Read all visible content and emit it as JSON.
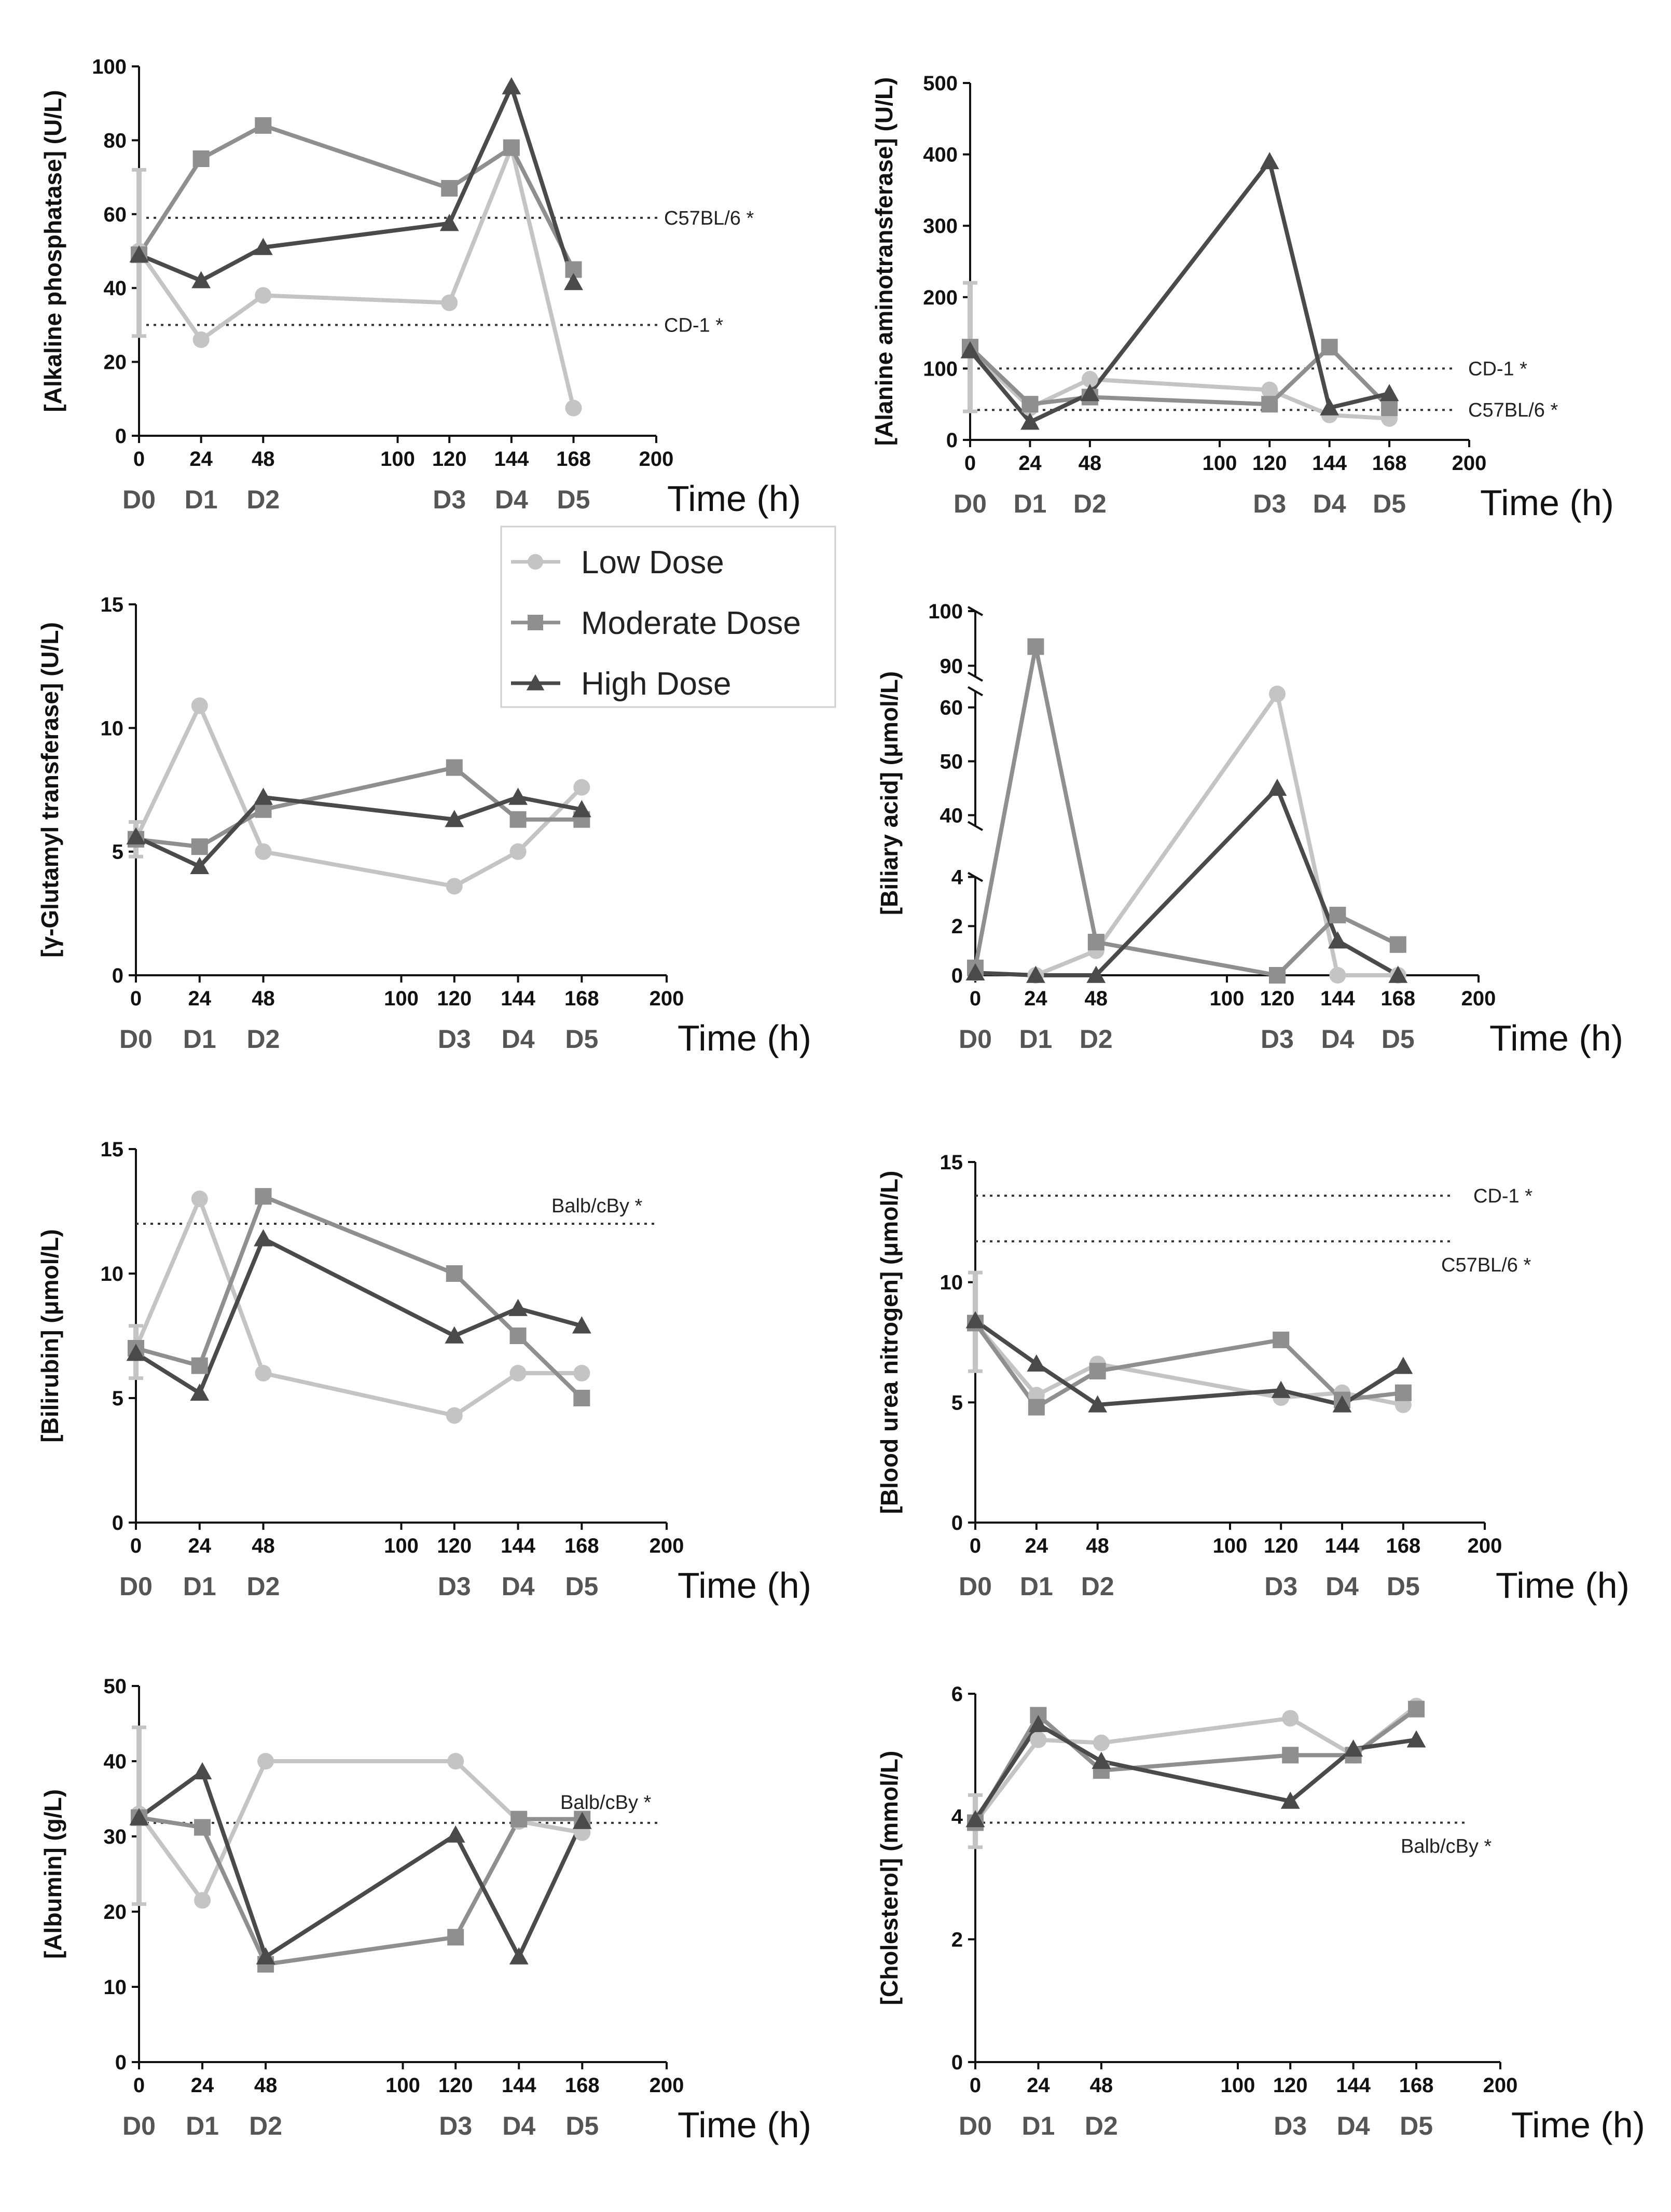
{
  "colors": {
    "low": "#c4c4c4",
    "moderate": "#8f8f8f",
    "high": "#4a4a4a",
    "axis": "#111111",
    "ref": "#333333"
  },
  "legend": {
    "items": [
      {
        "key": "low",
        "label": "Low Dose",
        "marker": "circle"
      },
      {
        "key": "moderate",
        "label": "Moderate Dose",
        "marker": "square"
      },
      {
        "key": "high",
        "label": "High Dose",
        "marker": "triangle"
      }
    ]
  },
  "chart_data": [
    {
      "type": "line",
      "title": "",
      "ylabel": "[Alkaline phosphatase] (U/L)",
      "xlabel": "Time (h)",
      "xlim": [
        0,
        200
      ],
      "xticks": [
        0,
        24,
        48,
        100,
        120,
        144,
        168,
        200
      ],
      "ylim": [
        0,
        100
      ],
      "yticks": [
        0,
        20,
        40,
        60,
        80,
        100
      ],
      "day_labels": [
        {
          "x": 0,
          "label": "D0"
        },
        {
          "x": 24,
          "label": "D1"
        },
        {
          "x": 48,
          "label": "D2"
        },
        {
          "x": 120,
          "label": "D3"
        },
        {
          "x": 144,
          "label": "D4"
        },
        {
          "x": 168,
          "label": "D5"
        }
      ],
      "x": [
        0,
        24,
        48,
        120,
        144,
        168
      ],
      "series": [
        {
          "name": "Low Dose",
          "key": "low",
          "values": [
            50,
            26,
            38,
            36,
            78,
            7.5
          ]
        },
        {
          "name": "Moderate Dose",
          "key": "moderate",
          "values": [
            49,
            75,
            84,
            67,
            78,
            45
          ]
        },
        {
          "name": "High Dose",
          "key": "high",
          "values": [
            49,
            42,
            51,
            57.5,
            94.5,
            41.5
          ]
        }
      ],
      "baseline_error": {
        "x": 0,
        "low": 27,
        "high": 72
      },
      "ref_lines": [
        {
          "y": 59,
          "label": "C57BL/6 *"
        },
        {
          "y": 30,
          "label": "CD-1 *"
        }
      ]
    },
    {
      "type": "line",
      "title": "",
      "ylabel": "[Alanine aminotransferase] (U/L)",
      "xlabel": "Time (h)",
      "xlim": [
        0,
        200
      ],
      "xticks": [
        0,
        24,
        48,
        100,
        120,
        144,
        168,
        200
      ],
      "ylim": [
        0,
        500
      ],
      "yticks": [
        0,
        100,
        200,
        300,
        400,
        500
      ],
      "day_labels": [
        {
          "x": 0,
          "label": "D0"
        },
        {
          "x": 24,
          "label": "D1"
        },
        {
          "x": 48,
          "label": "D2"
        },
        {
          "x": 120,
          "label": "D3"
        },
        {
          "x": 144,
          "label": "D4"
        },
        {
          "x": 168,
          "label": "D5"
        }
      ],
      "x": [
        0,
        24,
        48,
        120,
        144,
        168
      ],
      "series": [
        {
          "name": "Low Dose",
          "key": "low",
          "values": [
            125,
            45,
            85,
            70,
            35,
            30
          ]
        },
        {
          "name": "Moderate Dose",
          "key": "moderate",
          "values": [
            130,
            50,
            60,
            50,
            130,
            45
          ]
        },
        {
          "name": "High Dose",
          "key": "high",
          "values": [
            125,
            25,
            65,
            390,
            45,
            65
          ]
        }
      ],
      "baseline_error": {
        "x": 0,
        "low": 40,
        "high": 220
      },
      "ref_lines": [
        {
          "y": 100,
          "label": "CD-1 *"
        },
        {
          "y": 42,
          "label": "C57BL/6 *"
        }
      ]
    },
    {
      "type": "line",
      "title": "",
      "ylabel": "[γ-Glutamyl transferase] (U/L)",
      "xlabel": "Time (h)",
      "xlim": [
        0,
        200
      ],
      "xticks": [
        0,
        24,
        48,
        100,
        120,
        144,
        168,
        200
      ],
      "ylim": [
        0,
        15
      ],
      "yticks": [
        0,
        5,
        10,
        15
      ],
      "day_labels": [
        {
          "x": 0,
          "label": "D0"
        },
        {
          "x": 24,
          "label": "D1"
        },
        {
          "x": 48,
          "label": "D2"
        },
        {
          "x": 120,
          "label": "D3"
        },
        {
          "x": 144,
          "label": "D4"
        },
        {
          "x": 168,
          "label": "D5"
        }
      ],
      "x": [
        0,
        24,
        48,
        120,
        144,
        168
      ],
      "series": [
        {
          "name": "Low Dose",
          "key": "low",
          "values": [
            5.5,
            10.9,
            5.0,
            3.6,
            5.0,
            7.6
          ]
        },
        {
          "name": "Moderate Dose",
          "key": "moderate",
          "values": [
            5.5,
            5.2,
            6.7,
            8.4,
            6.3,
            6.3
          ]
        },
        {
          "name": "High Dose",
          "key": "high",
          "values": [
            5.6,
            4.4,
            7.2,
            6.3,
            7.2,
            6.7
          ]
        }
      ],
      "baseline_error": {
        "x": 0,
        "low": 4.8,
        "high": 6.2
      },
      "ref_lines": []
    },
    {
      "type": "line",
      "title": "",
      "ylabel": "[Biliary acid] (μmol/L)",
      "xlabel": "Time (h)",
      "xlim": [
        0,
        200
      ],
      "xticks": [
        0,
        24,
        48,
        100,
        120,
        144,
        168,
        200
      ],
      "broken_axis": true,
      "segments": [
        {
          "range": [
            0,
            4
          ],
          "ticks": [
            0,
            2,
            4
          ]
        },
        {
          "range": [
            38,
            63
          ],
          "ticks": [
            40,
            50,
            60
          ]
        },
        {
          "range": [
            88,
            100
          ],
          "ticks": [
            90,
            100
          ]
        }
      ],
      "day_labels": [
        {
          "x": 0,
          "label": "D0"
        },
        {
          "x": 24,
          "label": "D1"
        },
        {
          "x": 48,
          "label": "D2"
        },
        {
          "x": 120,
          "label": "D3"
        },
        {
          "x": 144,
          "label": "D4"
        },
        {
          "x": 168,
          "label": "D5"
        }
      ],
      "x": [
        0,
        24,
        48,
        120,
        144,
        168
      ],
      "series": [
        {
          "name": "Low Dose",
          "key": "low",
          "values": [
            0.1,
            0,
            1.0,
            62.5,
            0,
            0
          ]
        },
        {
          "name": "Moderate Dose",
          "key": "moderate",
          "values": [
            0.3,
            93.5,
            1.35,
            0,
            2.45,
            1.25
          ]
        },
        {
          "name": "High Dose",
          "key": "high",
          "values": [
            0.1,
            0,
            0,
            45,
            1.4,
            0
          ]
        }
      ],
      "ref_lines": []
    },
    {
      "type": "line",
      "title": "",
      "ylabel": "[Bilirubin] (μmol/L)",
      "xlabel": "Time (h)",
      "xlim": [
        0,
        200
      ],
      "xticks": [
        0,
        24,
        48,
        100,
        120,
        144,
        168,
        200
      ],
      "ylim": [
        0,
        15
      ],
      "yticks": [
        0,
        5,
        10,
        15
      ],
      "day_labels": [
        {
          "x": 0,
          "label": "D0"
        },
        {
          "x": 24,
          "label": "D1"
        },
        {
          "x": 48,
          "label": "D2"
        },
        {
          "x": 120,
          "label": "D3"
        },
        {
          "x": 144,
          "label": "D4"
        },
        {
          "x": 168,
          "label": "D5"
        }
      ],
      "x": [
        0,
        24,
        48,
        120,
        144,
        168
      ],
      "series": [
        {
          "name": "Low Dose",
          "key": "low",
          "values": [
            7.0,
            13.0,
            6.0,
            4.3,
            6.0,
            6.0
          ]
        },
        {
          "name": "Moderate Dose",
          "key": "moderate",
          "values": [
            7.0,
            6.3,
            13.1,
            10.0,
            7.5,
            5.0
          ]
        },
        {
          "name": "High Dose",
          "key": "high",
          "values": [
            6.8,
            5.2,
            11.4,
            7.5,
            8.6,
            7.9
          ]
        }
      ],
      "baseline_error": {
        "x": 0,
        "low": 5.8,
        "high": 7.9
      },
      "ref_lines": [
        {
          "y": 12,
          "label": "Balb/cBy *"
        }
      ]
    },
    {
      "type": "line",
      "title": "",
      "ylabel": "[Blood urea nitrogen] (μmol/L)",
      "xlabel": "Time (h)",
      "xlim": [
        0,
        200
      ],
      "xticks": [
        0,
        24,
        48,
        100,
        120,
        144,
        168,
        200
      ],
      "ylim": [
        0,
        15
      ],
      "yticks": [
        0,
        5,
        10,
        15
      ],
      "day_labels": [
        {
          "x": 0,
          "label": "D0"
        },
        {
          "x": 24,
          "label": "D1"
        },
        {
          "x": 48,
          "label": "D2"
        },
        {
          "x": 120,
          "label": "D3"
        },
        {
          "x": 144,
          "label": "D4"
        },
        {
          "x": 168,
          "label": "D5"
        }
      ],
      "x": [
        0,
        24,
        48,
        120,
        144,
        168
      ],
      "series": [
        {
          "name": "Low Dose",
          "key": "low",
          "values": [
            8.3,
            5.3,
            6.6,
            5.2,
            5.4,
            4.9
          ]
        },
        {
          "name": "Moderate Dose",
          "key": "moderate",
          "values": [
            8.3,
            4.8,
            6.3,
            7.6,
            5.1,
            5.4
          ]
        },
        {
          "name": "High Dose",
          "key": "high",
          "values": [
            8.4,
            6.6,
            4.9,
            5.5,
            4.9,
            6.5
          ]
        }
      ],
      "baseline_error": {
        "x": 0,
        "low": 6.3,
        "high": 10.4
      },
      "ref_lines": [
        {
          "y": 13.6,
          "label": "CD-1 *"
        },
        {
          "y": 11.7,
          "label": "C57BL/6 *"
        }
      ]
    },
    {
      "type": "line",
      "title": "",
      "ylabel": "[Albumin] (g/L)",
      "xlabel": "Time (h)",
      "xlim": [
        0,
        200
      ],
      "xticks": [
        0,
        24,
        48,
        100,
        120,
        144,
        168,
        200
      ],
      "ylim": [
        0,
        50
      ],
      "yticks": [
        0,
        10,
        20,
        30,
        40,
        50
      ],
      "day_labels": [
        {
          "x": 0,
          "label": "D0"
        },
        {
          "x": 24,
          "label": "D1"
        },
        {
          "x": 48,
          "label": "D2"
        },
        {
          "x": 120,
          "label": "D3"
        },
        {
          "x": 144,
          "label": "D4"
        },
        {
          "x": 168,
          "label": "D5"
        }
      ],
      "x": [
        0,
        24,
        48,
        120,
        144,
        168
      ],
      "series": [
        {
          "name": "Low Dose",
          "key": "low",
          "values": [
            33,
            21.5,
            40,
            40,
            32,
            30.5
          ]
        },
        {
          "name": "Moderate Dose",
          "key": "moderate",
          "values": [
            32.5,
            31.2,
            13,
            16.6,
            32.3,
            32.3
          ]
        },
        {
          "name": "High Dose",
          "key": "high",
          "values": [
            32.5,
            38.6,
            14,
            30.2,
            14,
            32
          ]
        }
      ],
      "baseline_error": {
        "x": 0,
        "low": 21,
        "high": 44.5
      },
      "ref_lines": [
        {
          "y": 31.8,
          "label": "Balb/cBy *"
        }
      ]
    },
    {
      "type": "line",
      "title": "",
      "ylabel": "[Cholesterol] (mmol/L)",
      "xlabel": "Time (h)",
      "xlim": [
        0,
        200
      ],
      "xticks": [
        0,
        24,
        48,
        100,
        120,
        144,
        168,
        200
      ],
      "ylim": [
        0,
        6
      ],
      "yticks": [
        0,
        2,
        4,
        6
      ],
      "day_labels": [
        {
          "x": 0,
          "label": "D0"
        },
        {
          "x": 24,
          "label": "D1"
        },
        {
          "x": 48,
          "label": "D2"
        },
        {
          "x": 120,
          "label": "D3"
        },
        {
          "x": 144,
          "label": "D4"
        },
        {
          "x": 168,
          "label": "D5"
        }
      ],
      "x": [
        0,
        24,
        48,
        120,
        144,
        168
      ],
      "series": [
        {
          "name": "Low Dose",
          "key": "low",
          "values": [
            3.9,
            5.25,
            5.2,
            5.6,
            5.0,
            5.8
          ]
        },
        {
          "name": "Moderate Dose",
          "key": "moderate",
          "values": [
            3.9,
            5.65,
            4.75,
            5.0,
            5.0,
            5.75
          ]
        },
        {
          "name": "High Dose",
          "key": "high",
          "values": [
            3.95,
            5.5,
            4.9,
            4.25,
            5.1,
            5.25
          ]
        }
      ],
      "baseline_error": {
        "x": 0,
        "low": 3.5,
        "high": 4.35
      },
      "ref_lines": [
        {
          "y": 3.9,
          "label": "Balb/cBy *"
        }
      ]
    }
  ]
}
